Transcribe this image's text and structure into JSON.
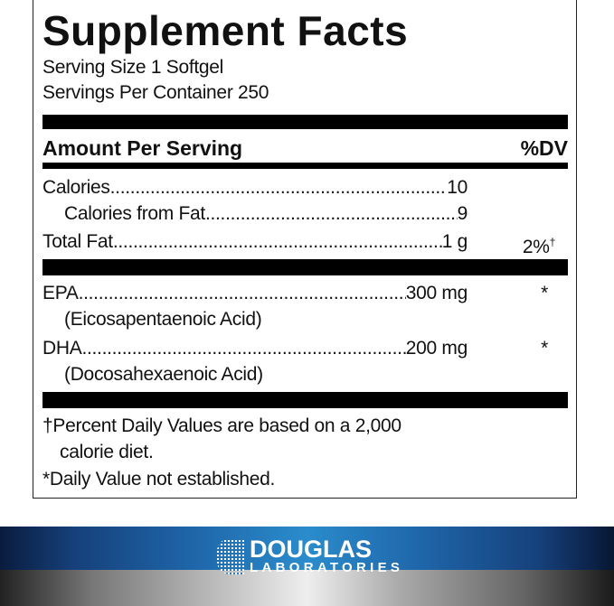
{
  "label": {
    "title": "Supplement Facts",
    "serving_size": "Serving Size 1 Softgel",
    "servings_per_container": "Servings Per Container 250",
    "header_amount": "Amount Per Serving",
    "header_dv": "%DV",
    "rows": [
      {
        "label": "Calories ",
        "value": " 10",
        "dv": ""
      },
      {
        "label": "Calories from Fat ",
        "value": " 9",
        "dv": ""
      },
      {
        "label": "Total Fat",
        "value": "1 g",
        "dv": "2%",
        "dv_mark": "†"
      },
      {
        "label": "EPA",
        "value": " 300 mg",
        "dv": "*",
        "sub": "(Eicosapentaenoic Acid)"
      },
      {
        "label": "DHA ",
        "value": " 200 mg",
        "dv": "*",
        "sub": "(Docosahexaenoic Acid)"
      }
    ],
    "footnote_1a": "†Percent Daily Values are based on a 2,000",
    "footnote_1b": "calorie diet.",
    "footnote_2": "*Daily Value not established."
  },
  "brand": {
    "name": "DOUGLAS",
    "sub": "LABORATORIES",
    "colors": {
      "banner": "#1e63a6",
      "text": "#ffffff"
    }
  }
}
